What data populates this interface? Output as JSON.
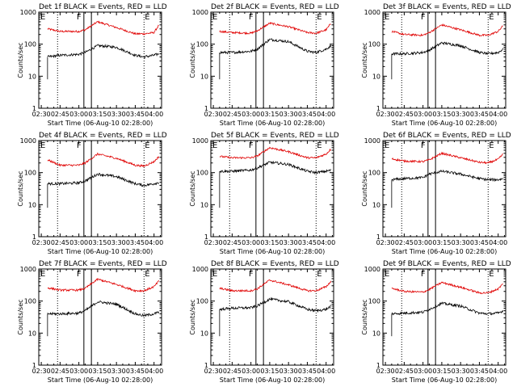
{
  "colors": {
    "events": "#000000",
    "lld": "#e00000",
    "axis": "#000000"
  },
  "shared": {
    "xlabel": "Start Time (06-Aug-10 02:28:00)",
    "ylabel": "Counts/sec",
    "x_tick_labels": [
      "02:30",
      "02:45",
      "03:00",
      "03:15",
      "03:30",
      "03:45",
      "04:00"
    ],
    "y_tick_labels": [
      "1",
      "10",
      "100",
      "1000"
    ],
    "region_labels": [
      "E",
      "F",
      "E"
    ]
  },
  "chart_data": [
    {
      "type": "line",
      "title": "Det 1f BLACK = Events, RED = LLD",
      "xlabel": "Start Time (06-Aug-10 02:28:00)",
      "ylabel": "Counts/sec",
      "xlim": [
        "02:28",
        "04:06"
      ],
      "ylim": [
        1,
        1000
      ],
      "yscale": "log",
      "x": [
        "02:35",
        "02:45",
        "03:00",
        "03:05",
        "03:15",
        "03:30",
        "03:45",
        "03:52",
        "04:00",
        "04:04"
      ],
      "series": [
        {
          "values": [
            300,
            250,
            250,
            280,
            500,
            330,
            210,
            210,
            230,
            400
          ]
        },
        {
          "values": [
            40,
            45,
            48,
            55,
            90,
            80,
            45,
            40,
            45,
            50
          ]
        }
      ],
      "markers": [
        "02:43",
        "03:04",
        "03:10",
        "03:52"
      ]
    },
    {
      "type": "line",
      "title": "Det 2f BLACK = Events, RED = LLD",
      "xlabel": "Start Time (06-Aug-10 02:28:00)",
      "ylabel": "Counts/sec",
      "xlim": [
        "02:28",
        "04:06"
      ],
      "ylim": [
        1,
        1000
      ],
      "yscale": "log",
      "x": [
        "02:35",
        "02:45",
        "03:00",
        "03:05",
        "03:15",
        "03:30",
        "03:45",
        "03:52",
        "04:00",
        "04:04"
      ],
      "series": [
        {
          "values": [
            250,
            230,
            220,
            260,
            450,
            350,
            230,
            220,
            280,
            450
          ]
        },
        {
          "values": [
            55,
            55,
            60,
            70,
            140,
            120,
            60,
            55,
            70,
            90
          ]
        }
      ],
      "markers": [
        "02:43",
        "03:04",
        "03:10",
        "03:52"
      ]
    },
    {
      "type": "line",
      "title": "Det 3f BLACK = Events, RED = LLD",
      "xlabel": "Start Time (06-Aug-10 02:28:00)",
      "ylabel": "Counts/sec",
      "xlim": [
        "02:28",
        "04:06"
      ],
      "ylim": [
        1,
        1000
      ],
      "yscale": "log",
      "x": [
        "02:35",
        "02:45",
        "03:00",
        "03:05",
        "03:15",
        "03:30",
        "03:45",
        "03:52",
        "04:00",
        "04:04"
      ],
      "series": [
        {
          "values": [
            250,
            200,
            190,
            230,
            400,
            280,
            190,
            190,
            250,
            380
          ]
        },
        {
          "values": [
            50,
            50,
            55,
            65,
            110,
            90,
            55,
            50,
            55,
            70
          ]
        }
      ],
      "markers": [
        "02:43",
        "03:04",
        "03:10",
        "03:52"
      ]
    },
    {
      "type": "line",
      "title": "Det 4f BLACK = Events, RED = LLD",
      "xlabel": "Start Time (06-Aug-10 02:28:00)",
      "ylabel": "Counts/sec",
      "xlim": [
        "02:28",
        "04:06"
      ],
      "ylim": [
        1,
        1000
      ],
      "yscale": "log",
      "x": [
        "02:35",
        "02:45",
        "03:00",
        "03:05",
        "03:15",
        "03:30",
        "03:45",
        "03:52",
        "04:00",
        "04:04"
      ],
      "series": [
        {
          "values": [
            250,
            170,
            170,
            200,
            380,
            280,
            170,
            160,
            220,
            320
          ]
        },
        {
          "values": [
            45,
            45,
            48,
            55,
            90,
            75,
            45,
            40,
            45,
            50
          ]
        }
      ],
      "markers": [
        "02:43",
        "03:04",
        "03:10",
        "03:52"
      ]
    },
    {
      "type": "line",
      "title": "Det 5f BLACK = Events, RED = LLD",
      "xlabel": "Start Time (06-Aug-10 02:28:00)",
      "ylabel": "Counts/sec",
      "xlim": [
        "02:28",
        "04:06"
      ],
      "ylim": [
        1,
        1000
      ],
      "yscale": "log",
      "x": [
        "02:35",
        "02:45",
        "03:00",
        "03:05",
        "03:15",
        "03:30",
        "03:45",
        "03:52",
        "04:00",
        "04:04"
      ],
      "series": [
        {
          "values": [
            320,
            290,
            290,
            330,
            600,
            450,
            290,
            290,
            380,
            550
          ]
        },
        {
          "values": [
            110,
            110,
            120,
            140,
            210,
            180,
            110,
            100,
            110,
            120
          ]
        }
      ],
      "markers": [
        "02:43",
        "03:04",
        "03:10",
        "03:52"
      ]
    },
    {
      "type": "line",
      "title": "Det 6f BLACK = Events, RED = LLD",
      "xlabel": "Start Time (06-Aug-10 02:28:00)",
      "ylabel": "Counts/sec",
      "xlim": [
        "02:28",
        "04:06"
      ],
      "ylim": [
        1,
        1000
      ],
      "yscale": "log",
      "x": [
        "02:35",
        "02:45",
        "03:00",
        "03:05",
        "03:15",
        "03:30",
        "03:45",
        "03:52",
        "04:00",
        "04:04"
      ],
      "series": [
        {
          "values": [
            270,
            230,
            220,
            250,
            400,
            290,
            210,
            200,
            260,
            380
          ]
        },
        {
          "values": [
            60,
            65,
            70,
            90,
            110,
            90,
            65,
            60,
            60,
            65
          ]
        }
      ],
      "markers": [
        "02:43",
        "03:04",
        "03:10",
        "03:52"
      ]
    },
    {
      "type": "line",
      "title": "Det 7f BLACK = Events, RED = LLD",
      "xlabel": "Start Time (06-Aug-10 02:28:00)",
      "ylabel": "Counts/sec",
      "xlim": [
        "02:28",
        "04:06"
      ],
      "ylim": [
        1,
        1000
      ],
      "yscale": "log",
      "x": [
        "02:35",
        "02:45",
        "03:00",
        "03:05",
        "03:15",
        "03:30",
        "03:45",
        "03:52",
        "04:00",
        "04:04"
      ],
      "series": [
        {
          "values": [
            260,
            220,
            220,
            250,
            480,
            330,
            210,
            210,
            280,
            430
          ]
        },
        {
          "values": [
            40,
            40,
            42,
            50,
            95,
            80,
            40,
            35,
            40,
            45
          ]
        }
      ],
      "markers": [
        "02:43",
        "03:04",
        "03:10",
        "03:52"
      ]
    },
    {
      "type": "line",
      "title": "Det 8f BLACK = Events, RED = LLD",
      "xlabel": "Start Time (06-Aug-10 02:28:00)",
      "ylabel": "Counts/sec",
      "xlim": [
        "02:28",
        "04:06"
      ],
      "ylim": [
        1,
        1000
      ],
      "yscale": "log",
      "x": [
        "02:35",
        "02:45",
        "03:00",
        "03:05",
        "03:15",
        "03:30",
        "03:45",
        "03:52",
        "04:00",
        "04:04"
      ],
      "series": [
        {
          "values": [
            250,
            210,
            210,
            240,
            450,
            320,
            210,
            210,
            280,
            420
          ]
        },
        {
          "values": [
            55,
            60,
            62,
            70,
            115,
            95,
            55,
            50,
            55,
            70
          ]
        }
      ],
      "markers": [
        "02:43",
        "03:04",
        "03:10",
        "03:52"
      ]
    },
    {
      "type": "line",
      "title": "Det 9f BLACK = Events, RED = LLD",
      "xlabel": "Start Time (06-Aug-10 02:28:00)",
      "ylabel": "Counts/sec",
      "xlim": [
        "02:28",
        "04:06"
      ],
      "ylim": [
        1,
        1000
      ],
      "yscale": "log",
      "x": [
        "02:35",
        "02:45",
        "03:00",
        "03:05",
        "03:15",
        "03:30",
        "03:45",
        "03:52",
        "04:00",
        "04:04"
      ],
      "series": [
        {
          "values": [
            250,
            200,
            190,
            230,
            380,
            270,
            180,
            180,
            240,
            350
          ]
        },
        {
          "values": [
            40,
            42,
            45,
            55,
            85,
            70,
            42,
            40,
            42,
            50
          ]
        }
      ],
      "markers": [
        "02:43",
        "03:04",
        "03:10",
        "03:52"
      ]
    }
  ]
}
